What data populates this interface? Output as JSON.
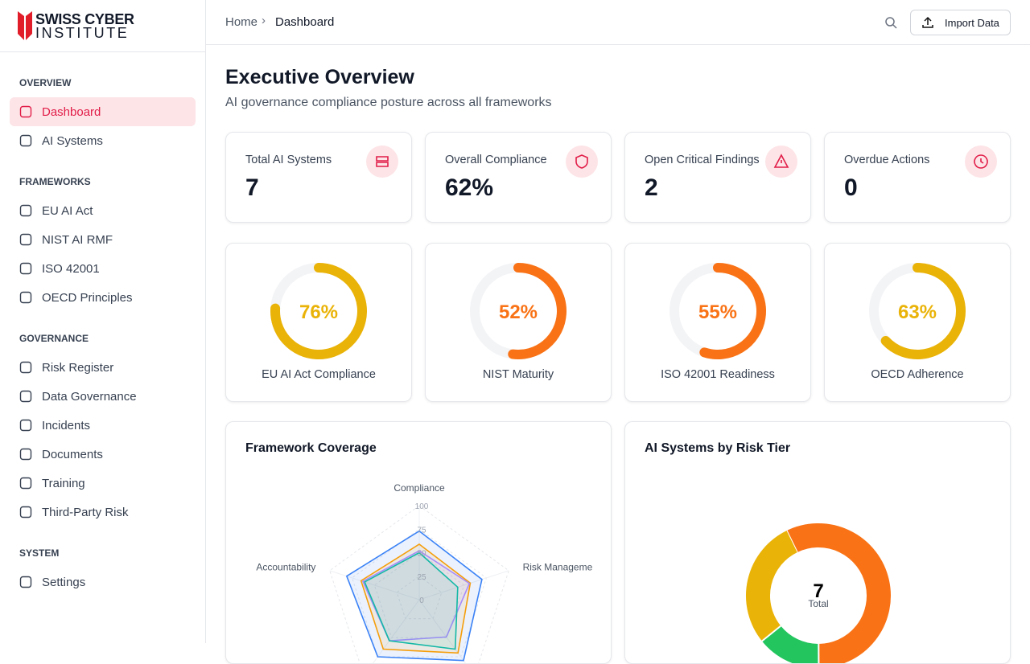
{
  "logo": {
    "line1": "SWISS CYBER",
    "line2": "INSTITUTE"
  },
  "sidebar": {
    "sections": [
      {
        "heading": "OVERVIEW",
        "items": [
          "Dashboard",
          "AI Systems"
        ]
      },
      {
        "heading": "FRAMEWORKS",
        "items": [
          "EU AI Act",
          "NIST AI RMF",
          "ISO 42001",
          "OECD Principles"
        ]
      },
      {
        "heading": "GOVERNANCE",
        "items": [
          "Risk Register",
          "Data Governance",
          "Incidents",
          "Documents",
          "Training",
          "Third-Party Risk"
        ]
      },
      {
        "heading": "SYSTEM",
        "items": [
          "Settings"
        ]
      }
    ]
  },
  "breadcrumb": [
    "Home",
    "Dashboard"
  ],
  "header_button": "Import Data",
  "page": {
    "title": "Executive Overview",
    "subtitle": "AI governance compliance posture across all frameworks"
  },
  "stat_cards": [
    {
      "label": "Total AI Systems",
      "value": "7"
    },
    {
      "label": "Overall Compliance",
      "value": "62%"
    },
    {
      "label": "Open Critical Findings",
      "value": "2"
    },
    {
      "label": "Overdue Actions",
      "value": "0"
    }
  ],
  "chart_data": [
    {
      "type": "gauge",
      "title": "EU AI Act Compliance",
      "value": 76,
      "value_label": "76%",
      "ylim": [
        0,
        100
      ],
      "color": "#eab308"
    },
    {
      "type": "gauge",
      "title": "NIST Maturity",
      "value": 52,
      "value_label": "52%",
      "ylim": [
        0,
        100
      ],
      "color": "#f97316"
    },
    {
      "type": "gauge",
      "title": "ISO 42001 Readiness",
      "value": 55,
      "value_label": "55%",
      "ylim": [
        0,
        100
      ],
      "color": "#f97316"
    },
    {
      "type": "gauge",
      "title": "OECD Adherence",
      "value": 63,
      "value_label": "63%",
      "ylim": [
        0,
        100
      ],
      "color": "#eab308"
    },
    {
      "type": "radar",
      "title": "Framework Coverage",
      "categories": [
        "Compliance",
        "Risk Management",
        null,
        null,
        "Accountability"
      ],
      "ylim": [
        0,
        100
      ],
      "yticks": [
        0,
        25,
        50,
        75,
        100
      ],
      "grid": true,
      "series": [
        {
          "color": "#3b82f6",
          "values": [
            73,
            70,
            80,
            75,
            81
          ]
        },
        {
          "color": "#f59e0b",
          "values": [
            59,
            57,
            70,
            65,
            65
          ]
        },
        {
          "color": "#a78bfa",
          "values": [
            52,
            56,
            49,
            54,
            63
          ]
        },
        {
          "color": "#14b8a6",
          "values": [
            50,
            43,
            65,
            54,
            61
          ]
        }
      ]
    },
    {
      "type": "donut",
      "title": "AI Systems by Risk Tier",
      "values": [
        4,
        1,
        2
      ],
      "colors": [
        "#f97316",
        "#22c55e",
        "#eab308"
      ],
      "total": 7,
      "total_label": "Total"
    }
  ]
}
